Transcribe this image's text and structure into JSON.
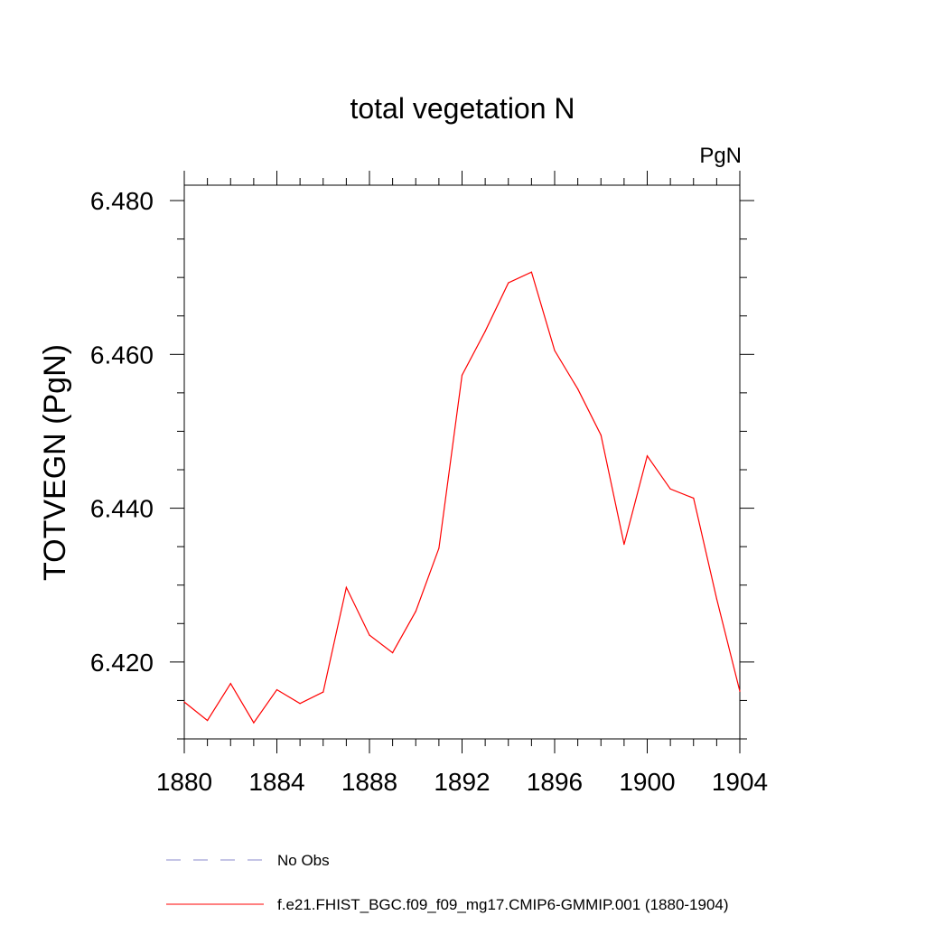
{
  "chart_data": {
    "type": "line",
    "title": "total vegetation N",
    "units_label": "PgN",
    "ylabel": "TOTVEGN  (PgN)",
    "xlabel": "",
    "xlim": [
      1880,
      1904
    ],
    "ylim": [
      6.41,
      6.482
    ],
    "x_ticks": [
      1880,
      1884,
      1888,
      1892,
      1896,
      1900,
      1904
    ],
    "x_tick_labels": [
      "1880",
      "1884",
      "1888",
      "1892",
      "1896",
      "1900",
      "1904"
    ],
    "y_ticks": [
      6.42,
      6.44,
      6.46,
      6.48
    ],
    "y_tick_labels": [
      "6.420",
      "6.440",
      "6.460",
      "6.480"
    ],
    "y_minor_step": 0.005,
    "x_minor_step": 1,
    "grid": false,
    "series": [
      {
        "name": "f.e21.FHIST_BGC.f09_f09_mg17.CMIP6-GMMIP.001 (1880-1904)",
        "color": "#ff0000",
        "style": "solid",
        "x": [
          1880,
          1881,
          1882,
          1883,
          1884,
          1885,
          1886,
          1887,
          1888,
          1889,
          1890,
          1891,
          1892,
          1893,
          1894,
          1895,
          1896,
          1897,
          1898,
          1899,
          1900,
          1901,
          1902,
          1903,
          1904
        ],
        "y": [
          6.4148,
          6.4124,
          6.4172,
          6.4121,
          6.4164,
          6.4146,
          6.4161,
          6.4297,
          6.4235,
          6.4212,
          6.4266,
          6.4348,
          6.4573,
          6.463,
          6.4693,
          6.4707,
          6.4605,
          6.4555,
          6.4495,
          6.4353,
          6.4468,
          6.4425,
          6.4413,
          6.4282,
          6.4162
        ]
      }
    ],
    "legend": [
      {
        "label": "No Obs",
        "color": "#8a8acd",
        "style": "dashed"
      },
      {
        "label": "f.e21.FHIST_BGC.f09_f09_mg17.CMIP6-GMMIP.001 (1880-1904)",
        "color": "#ff0000",
        "style": "solid"
      }
    ],
    "legend_position": "bottom"
  }
}
